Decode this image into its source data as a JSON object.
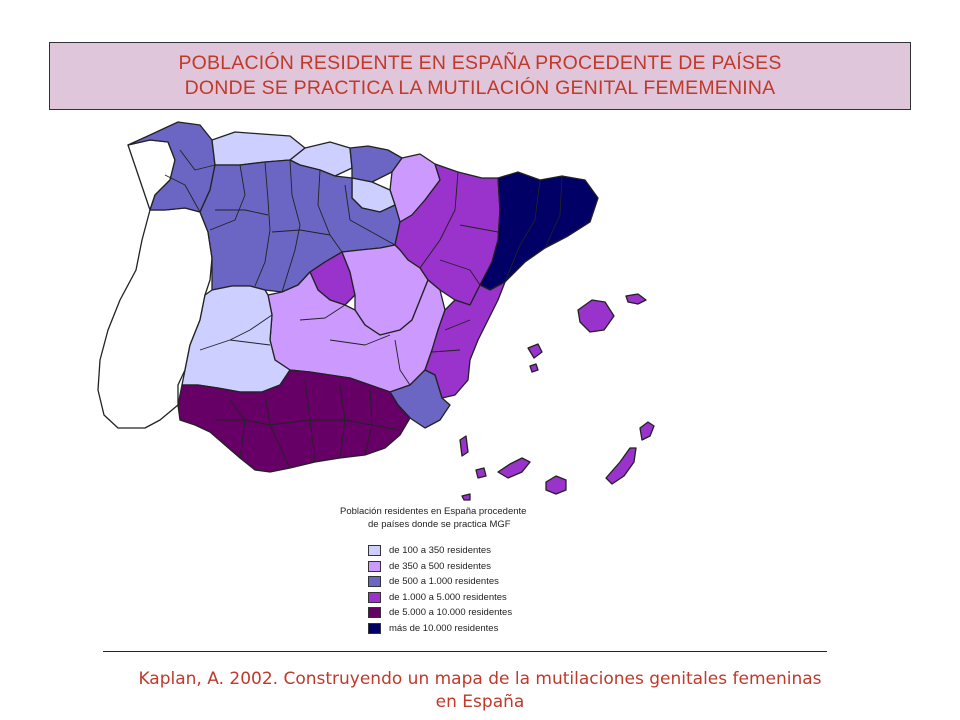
{
  "title": {
    "line1": "POBLACIÓN RESIDENTE EN ESPAÑA PROCEDENTE DE PAÍSES",
    "line2": "DONDE SE PRACTICA LA MUTILACIÓN GENITAL FEMEMENINA"
  },
  "legend": {
    "title_line1": "Población residentes en España procedente",
    "title_line2": "de países donde se practica MGF",
    "items": [
      {
        "label": "de 100 a 350 residentes",
        "color": "#cccfff"
      },
      {
        "label": "de 350 a 500 residentes",
        "color": "#cc99ff"
      },
      {
        "label": "de 500 a 1.000 residentes",
        "color": "#6b66c4"
      },
      {
        "label": "de 1.000 a 5.000 residentes",
        "color": "#9933cc"
      },
      {
        "label": "de 5.000 a 10.000 residentes",
        "color": "#660066"
      },
      {
        "label": "más de 10.000 residentes",
        "color": "#000066"
      }
    ]
  },
  "map_colors": {
    "border": "#222222",
    "portugal": "#ffffff"
  },
  "citation": {
    "line1": "Kaplan, A. 2002. Construyendo un mapa de la mutilaciones genitales femeninas",
    "line2": "en España"
  }
}
